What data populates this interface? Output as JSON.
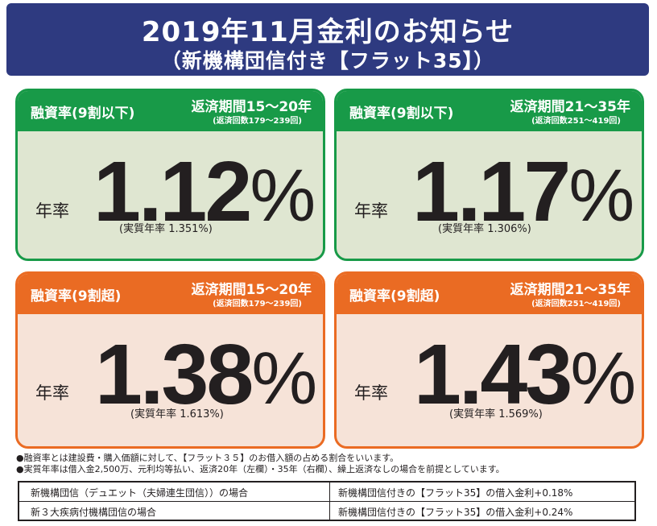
{
  "header": {
    "title": "2019年11月金利のお知らせ",
    "subtitle": "（新機構団信付き【フラット35】）"
  },
  "cards": [
    {
      "ratio": "融資率(9割以下)",
      "period": "返済期間15～20年",
      "count": "(返済回数179～239回)",
      "nen": "年率",
      "rate_num": "1.12",
      "rate_unit": "%",
      "real": "(実質年率 1.351%)",
      "theme": "green"
    },
    {
      "ratio": "融資率(9割以下)",
      "period": "返済期間21～35年",
      "count": "(返済回数251～419回)",
      "nen": "年率",
      "rate_num": "1.17",
      "rate_unit": "%",
      "real": "(実質年率 1.306%)",
      "theme": "green"
    },
    {
      "ratio": "融資率(9割超)",
      "period": "返済期間15～20年",
      "count": "(返済回数179～239回)",
      "nen": "年率",
      "rate_num": "1.38",
      "rate_unit": "%",
      "real": "(実質年率 1.613%)",
      "theme": "orange"
    },
    {
      "ratio": "融資率(9割超)",
      "period": "返済期間21～35年",
      "count": "(返済回数251～419回)",
      "nen": "年率",
      "rate_num": "1.43",
      "rate_unit": "%",
      "real": "(実質年率 1.569%)",
      "theme": "orange"
    }
  ],
  "notes": [
    "●融資率とは建設費・購入価額に対して、【フラット３５】のお借入額の占める割合をいいます。",
    "●実質年率は借入金2,500万、元利均等払い、返済20年（左欄）・35年（右欄）、繰上返済なしの場合を前提としています。"
  ],
  "table": [
    {
      "left": "新機構団信（デュエット（夫婦連生団信））の場合",
      "right": "新機構団信付きの【フラット35】の借入金利+0.18%"
    },
    {
      "left": "新３大疾病付機構団信の場合",
      "right": "新機構団信付きの【フラット35】の借入金利+0.24%"
    }
  ],
  "colors": {
    "navy": "#2e3a80",
    "green": "#189a48",
    "orange": "#ea6b23",
    "green_bg": "#dfe6d1",
    "orange_bg": "#f6e3d8"
  }
}
